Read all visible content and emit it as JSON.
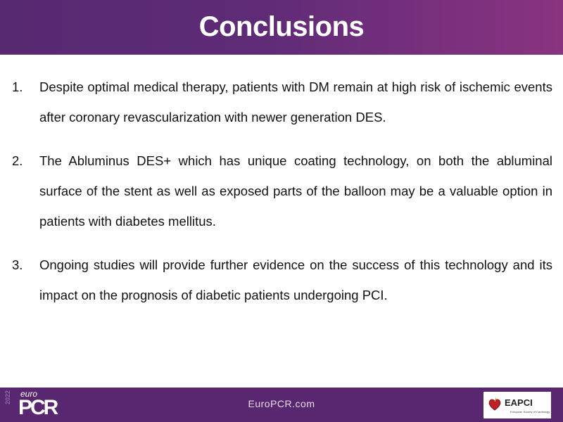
{
  "header": {
    "title": "Conclusions"
  },
  "conclusions": [
    {
      "number": "1.",
      "text": "Despite optimal medical therapy, patients with DM remain at high risk of ischemic events after coronary revascularization with newer generation DES."
    },
    {
      "number": "2.",
      "text": "The Abluminus DES+ which has unique coating technology, on both the abluminal surface of the stent as well as exposed parts of the balloon may be a valuable option in patients with diabetes mellitus."
    },
    {
      "number": "3.",
      "text": "Ongoing studies will provide further evidence on the success of this technology and its impact on the prognosis of  diabetic patients undergoing PCI."
    }
  ],
  "footer": {
    "logo_year": "2022",
    "logo_prefix": "euro",
    "logo_main": "PCR",
    "website": "EuroPCR.com",
    "partner_logo": "EAPCI",
    "partner_sub": "European Society of Cardiology"
  },
  "colors": {
    "header_start": "#582a72",
    "header_end": "#8a3381",
    "footer": "#59276f"
  }
}
